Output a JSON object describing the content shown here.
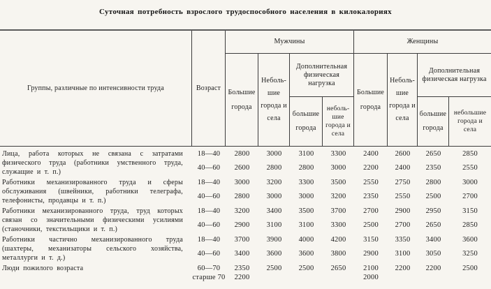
{
  "title": "Суточная потребность взрослого трудоспособного населения в килокалориях",
  "table": {
    "header": {
      "groups": "Группы, различные по интенсивности труда",
      "age": "Возраст",
      "men": {
        "label": "Мужчины",
        "big": "Боль­шие города",
        "small": "Неболь­шие города и села",
        "extra": "Дополнительная физическая нагрузка",
        "extra_big": "большие города",
        "extra_small": "неболь­шие города и села"
      },
      "women": {
        "label": "Женщины",
        "big": "Большие города",
        "small": "Неболь­шие города и села",
        "extra": "Дополнительная физическая нагрузка",
        "extra_big": "большие города",
        "extra_small": "неболь­шие города и села"
      }
    },
    "rows": [
      {
        "group": "Лица, работа которых не связана с затратами физического труда (работники умственного труда, служащие и т. п.)",
        "entries": [
          {
            "age": "18—40",
            "values": [
              "2800",
              "3000",
              "3100",
              "3300",
              "2400",
              "2600",
              "2650",
              "2850"
            ]
          },
          {
            "age": "40—60",
            "values": [
              "2600",
              "2800",
              "2800",
              "3000",
              "2200",
              "2400",
              "2350",
              "2550"
            ]
          }
        ]
      },
      {
        "group": "Работники механизированного труда и сферы обслуживания (швейники, работники телеграфа, телефонисты, продавцы и т. п.)",
        "entries": [
          {
            "age": "18—40",
            "values": [
              "3000",
              "3200",
              "3300",
              "3500",
              "2550",
              "2750",
              "2800",
              "3000"
            ]
          },
          {
            "age": "40—60",
            "values": [
              "2800",
              "3000",
              "3000",
              "3200",
              "2350",
              "2550",
              "2500",
              "2700"
            ]
          }
        ]
      },
      {
        "group": "Работники механизированного труда, труд которых связан со значительными физическими усилиями (станочники, текстильщики и т. п.)",
        "entries": [
          {
            "age": "18—40",
            "values": [
              "3200",
              "3400",
              "3500",
              "3700",
              "2700",
              "2900",
              "2950",
              "3150"
            ]
          },
          {
            "age": "40—60",
            "values": [
              "2900",
              "3100",
              "3100",
              "3300",
              "2500",
              "2700",
              "2650",
              "2850"
            ]
          }
        ]
      },
      {
        "group": "Работники частично механизированного труда (шахтеры, механизаторы сельского хозяйства, металлурги и т. д.)",
        "entries": [
          {
            "age": "18—40",
            "values": [
              "3700",
              "3900",
              "4000",
              "4200",
              "3150",
              "3350",
              "3400",
              "3600"
            ]
          },
          {
            "age": "40—60",
            "values": [
              "3400",
              "3600",
              "3600",
              "3800",
              "2900",
              "3100",
              "3050",
              "3250"
            ]
          }
        ]
      },
      {
        "group": "Люди пожилого возраста",
        "entries": [
          {
            "age": "60—70",
            "values": [
              "2350",
              "2500",
              "2500",
              "2650",
              "2100",
              "2200",
              "2200",
              "2500"
            ]
          },
          {
            "age": "старше 70",
            "values": [
              "2200",
              "",
              "",
              "",
              "2000",
              "",
              "",
              ""
            ]
          }
        ]
      }
    ]
  }
}
